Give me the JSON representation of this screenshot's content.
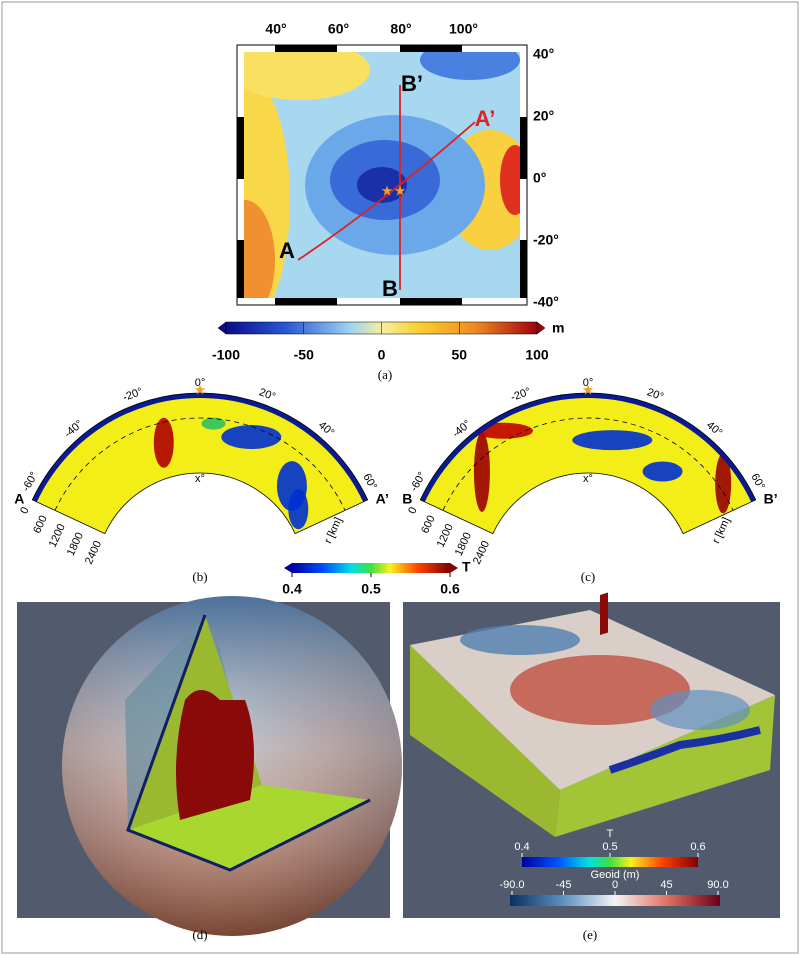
{
  "panel_a": {
    "label": "(a)",
    "lon_ticks": [
      "40°",
      "60°",
      "80°",
      "100°"
    ],
    "lat_ticks": [
      "40°",
      "20°",
      "0°",
      "-20°",
      "-40°"
    ],
    "points": [
      "A",
      "A’",
      "B",
      "B’"
    ],
    "colorbar": {
      "range": [
        -100,
        100
      ],
      "ticks": [
        -100,
        -50,
        0,
        50,
        100
      ],
      "unit": "m"
    }
  },
  "panel_b": {
    "label": "(b)",
    "angles": [
      "-60°",
      "-40°",
      "-20°",
      "0°",
      "20°",
      "40°",
      "60°"
    ],
    "center": "x°",
    "depths": [
      0,
      600,
      1200,
      1800,
      2400
    ],
    "radius_label": "r [km]",
    "ends": [
      "A",
      "A’"
    ]
  },
  "panel_c": {
    "label": "(c)",
    "angles": [
      "-60°",
      "-40°",
      "-20°",
      "0°",
      "20°",
      "40°",
      "60°"
    ],
    "center": "x°",
    "depths": [
      0,
      600,
      1200,
      1800,
      2400
    ],
    "radius_label": "r [km]",
    "ends": [
      "B",
      "B’"
    ]
  },
  "colorbar_T": {
    "title": "T",
    "range": [
      0.4,
      0.6
    ],
    "ticks": [
      0.4,
      0.5,
      0.6
    ]
  },
  "panel_d": {
    "label": "(d)"
  },
  "panel_e": {
    "label": "(e)",
    "t_colorbar": {
      "title": "T",
      "range": [
        0.4,
        0.6
      ],
      "ticks": [
        0.4,
        0.5,
        0.6
      ]
    },
    "geoid_colorbar": {
      "title": "Geoid (m)",
      "range": [
        -90,
        90
      ],
      "ticks": [
        {
          "value": -90,
          "label": "-90.0"
        },
        -45,
        0,
        45,
        {
          "value": 90,
          "label": "90.0"
        }
      ]
    }
  }
}
